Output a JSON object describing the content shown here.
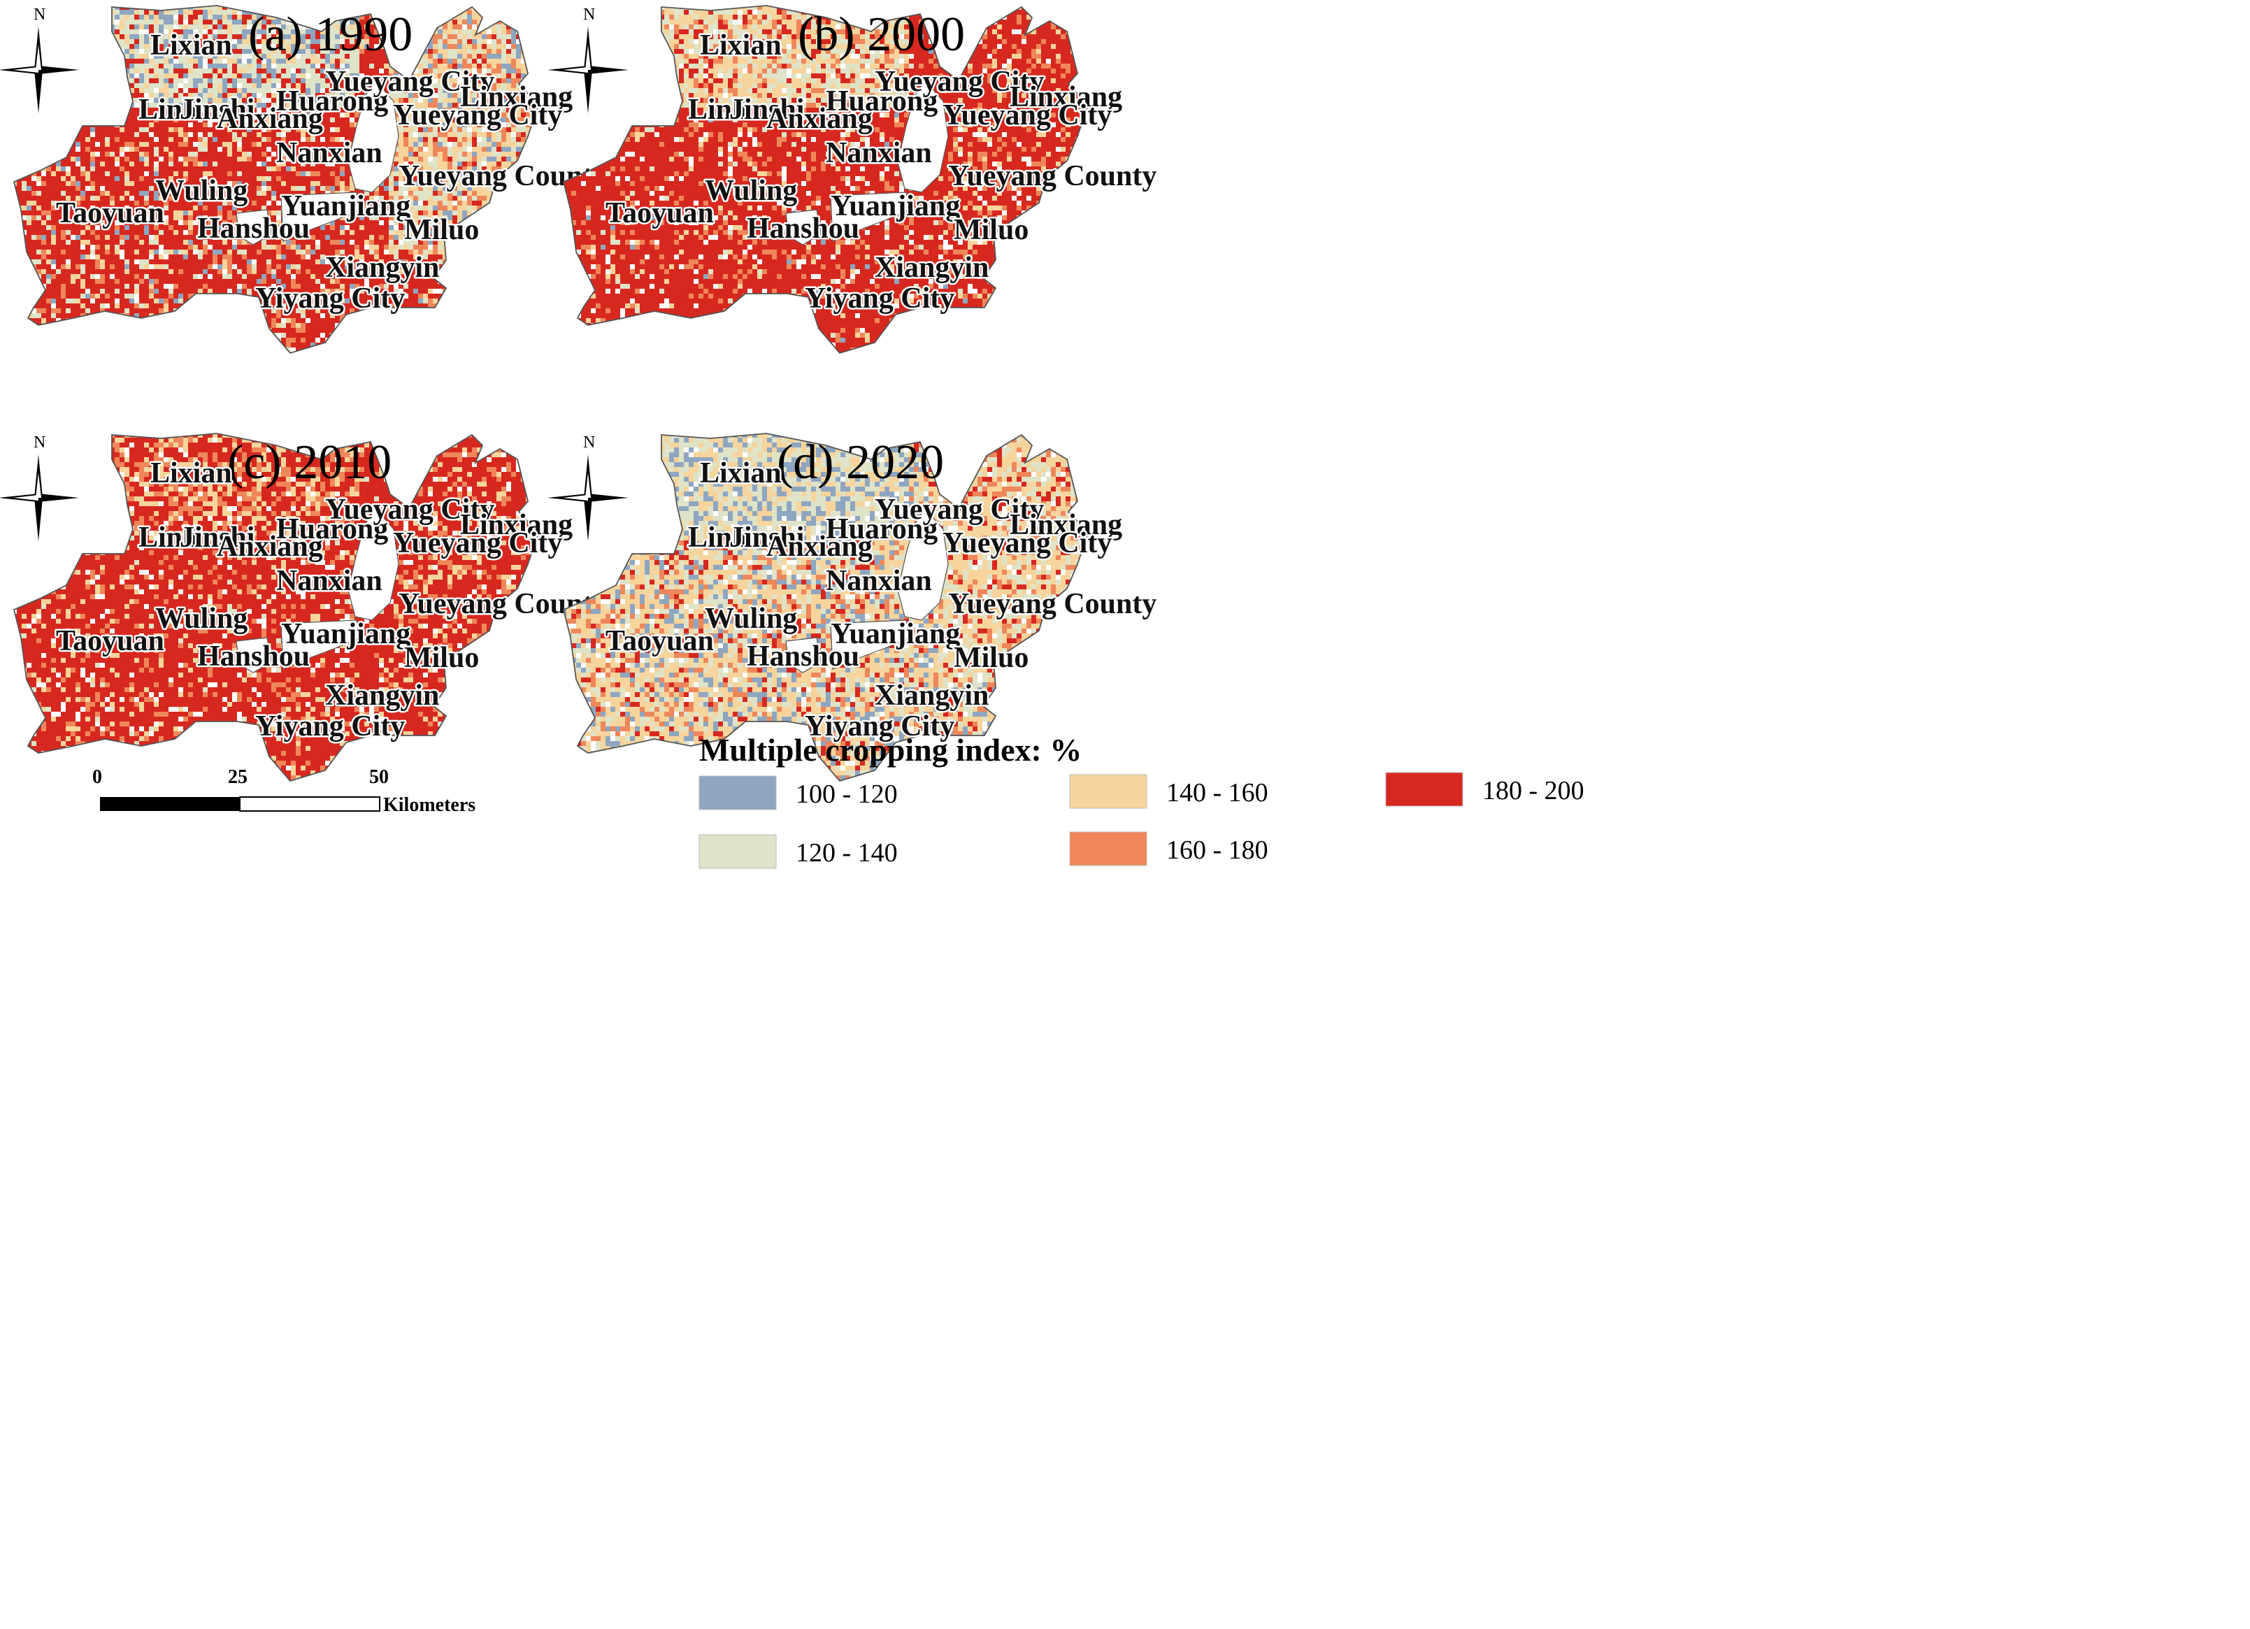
{
  "panels": [
    {
      "id": "a",
      "title": "(a)  1990",
      "scheme": [
        [
          5,
          0.7
        ],
        [
          4,
          0.1
        ],
        [
          3,
          0.1
        ],
        [
          2,
          0.06
        ],
        [
          1,
          0.04
        ]
      ],
      "northScheme": [
        [
          2,
          0.4
        ],
        [
          1,
          0.22
        ],
        [
          3,
          0.18
        ],
        [
          5,
          0.2
        ]
      ],
      "eastScheme": [
        [
          3,
          0.35
        ],
        [
          2,
          0.25
        ],
        [
          4,
          0.2
        ],
        [
          5,
          0.1
        ],
        [
          1,
          0.1
        ]
      ]
    },
    {
      "id": "b",
      "title": "(b) 2000",
      "scheme": [
        [
          5,
          0.82
        ],
        [
          4,
          0.1
        ],
        [
          3,
          0.05
        ],
        [
          2,
          0.02
        ],
        [
          1,
          0.01
        ]
      ],
      "northScheme": [
        [
          3,
          0.4
        ],
        [
          2,
          0.3
        ],
        [
          4,
          0.15
        ],
        [
          5,
          0.15
        ]
      ],
      "eastScheme": [
        [
          5,
          0.75
        ],
        [
          4,
          0.15
        ],
        [
          3,
          0.1
        ]
      ]
    },
    {
      "id": "c",
      "title": "(c)  2010",
      "scheme": [
        [
          5,
          0.8
        ],
        [
          4,
          0.1
        ],
        [
          3,
          0.08
        ],
        [
          2,
          0.02
        ]
      ],
      "northScheme": [
        [
          5,
          0.55
        ],
        [
          3,
          0.25
        ],
        [
          4,
          0.2
        ]
      ],
      "eastScheme": [
        [
          5,
          0.72
        ],
        [
          4,
          0.15
        ],
        [
          3,
          0.13
        ]
      ]
    },
    {
      "id": "d",
      "title": "(d)  2020",
      "scheme": [
        [
          3,
          0.4
        ],
        [
          2,
          0.2
        ],
        [
          1,
          0.15
        ],
        [
          4,
          0.15
        ],
        [
          5,
          0.1
        ]
      ],
      "northScheme": [
        [
          2,
          0.4
        ],
        [
          1,
          0.3
        ],
        [
          3,
          0.3
        ]
      ],
      "eastScheme": [
        [
          3,
          0.45
        ],
        [
          2,
          0.25
        ],
        [
          4,
          0.15
        ],
        [
          5,
          0.15
        ]
      ]
    }
  ],
  "places": [
    "Lixian",
    "Linli",
    "Jinshi",
    "Anxiang",
    "Huarong",
    "Yueyang City",
    "Linxiang",
    "Yueyang City",
    "Nanxian",
    "Yueyang County",
    "Wuling",
    "Taoyuan",
    "Yuanjiang",
    "Hanshou",
    "Miluo",
    "Xiangyin",
    "Yiyang City"
  ],
  "north_label": "N",
  "legend": {
    "title": "Multiple cropping index: %",
    "classes": [
      {
        "label": "100 - 120",
        "color": "#8ea6c0"
      },
      {
        "label": "120 - 140",
        "color": "#dfe3c8"
      },
      {
        "label": "140 - 160",
        "color": "#f7d49c"
      },
      {
        "label": "160 - 180",
        "color": "#ef875a"
      },
      {
        "label": "180 - 200",
        "color": "#d7281f"
      }
    ]
  },
  "scalebar": {
    "ticks": [
      "0",
      "25",
      "50"
    ],
    "unit": "Kilometers"
  }
}
